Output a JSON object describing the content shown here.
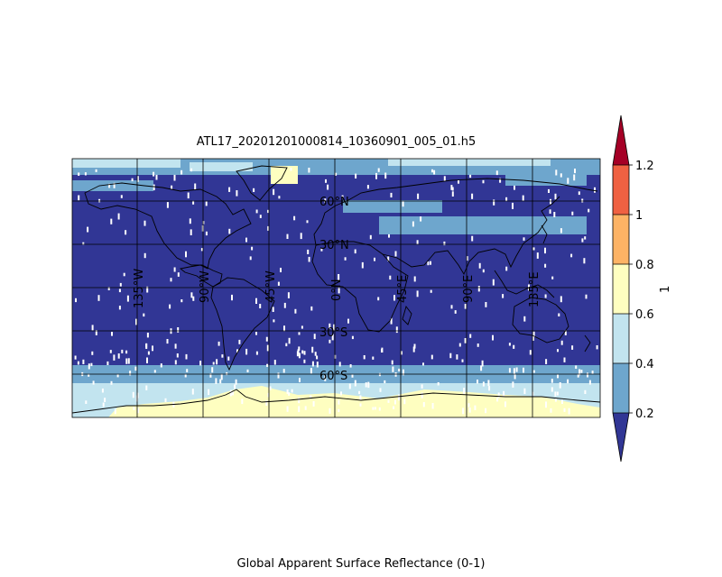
{
  "figure": {
    "title": "ATL17_20201201000814_10360901_005_01.h5",
    "caption": "Global Apparent Surface Reflectance (0-1)"
  },
  "map": {
    "projection": "equirectangular",
    "lon_range": [
      -180,
      180
    ],
    "lat_range": [
      -90,
      90
    ],
    "meridian_labels": [
      "135°W",
      "90°W",
      "45°W",
      "0°N",
      "45°E",
      "90°E",
      "135°E"
    ],
    "parallel_labels": [
      "60°N",
      "30°N",
      "30°S",
      "60°S"
    ],
    "coastline_color": "#000000",
    "gridline_color": "#000000"
  },
  "colorbar": {
    "label": "1",
    "ticks": [
      "0.2",
      "0.4",
      "0.6",
      "0.8",
      "1",
      "1.2"
    ],
    "bins": [
      {
        "range": [
          0.0,
          0.2
        ],
        "color": "#313695"
      },
      {
        "range": [
          0.2,
          0.4
        ],
        "color": "#6ea6cd"
      },
      {
        "range": [
          0.4,
          0.6
        ],
        "color": "#c2e4ef"
      },
      {
        "range": [
          0.6,
          0.8
        ],
        "color": "#fefec0"
      },
      {
        "range": [
          0.8,
          1.0
        ],
        "color": "#fdb365"
      },
      {
        "range": [
          1.0,
          1.2
        ],
        "color": "#ef6142"
      },
      {
        "range": [
          1.2,
          1.4
        ],
        "color": "#a50026"
      }
    ],
    "extend": "both"
  },
  "chart_data": {
    "type": "heatmap",
    "title": "ATL17_20201201000814_10360901_005_01.h5",
    "xlabel": "",
    "ylabel": "",
    "colorbar_label": "1",
    "value_range": [
      0.2,
      1.2
    ],
    "grid": true,
    "latitude_bands": [
      {
        "lat_range": [
          75,
          90
        ],
        "dominant_value": "0.2-0.4"
      },
      {
        "lat_range": [
          45,
          70
        ],
        "dominant_value": "0.0-0.2"
      },
      {
        "lat_range": [
          -50,
          45
        ],
        "dominant_value": "0.0-0.2"
      },
      {
        "lat_range": [
          -65,
          -50
        ],
        "dominant_value": "0.2-0.4"
      },
      {
        "lat_range": [
          -90,
          -65
        ],
        "dominant_value": "0.6-0.8"
      }
    ]
  }
}
